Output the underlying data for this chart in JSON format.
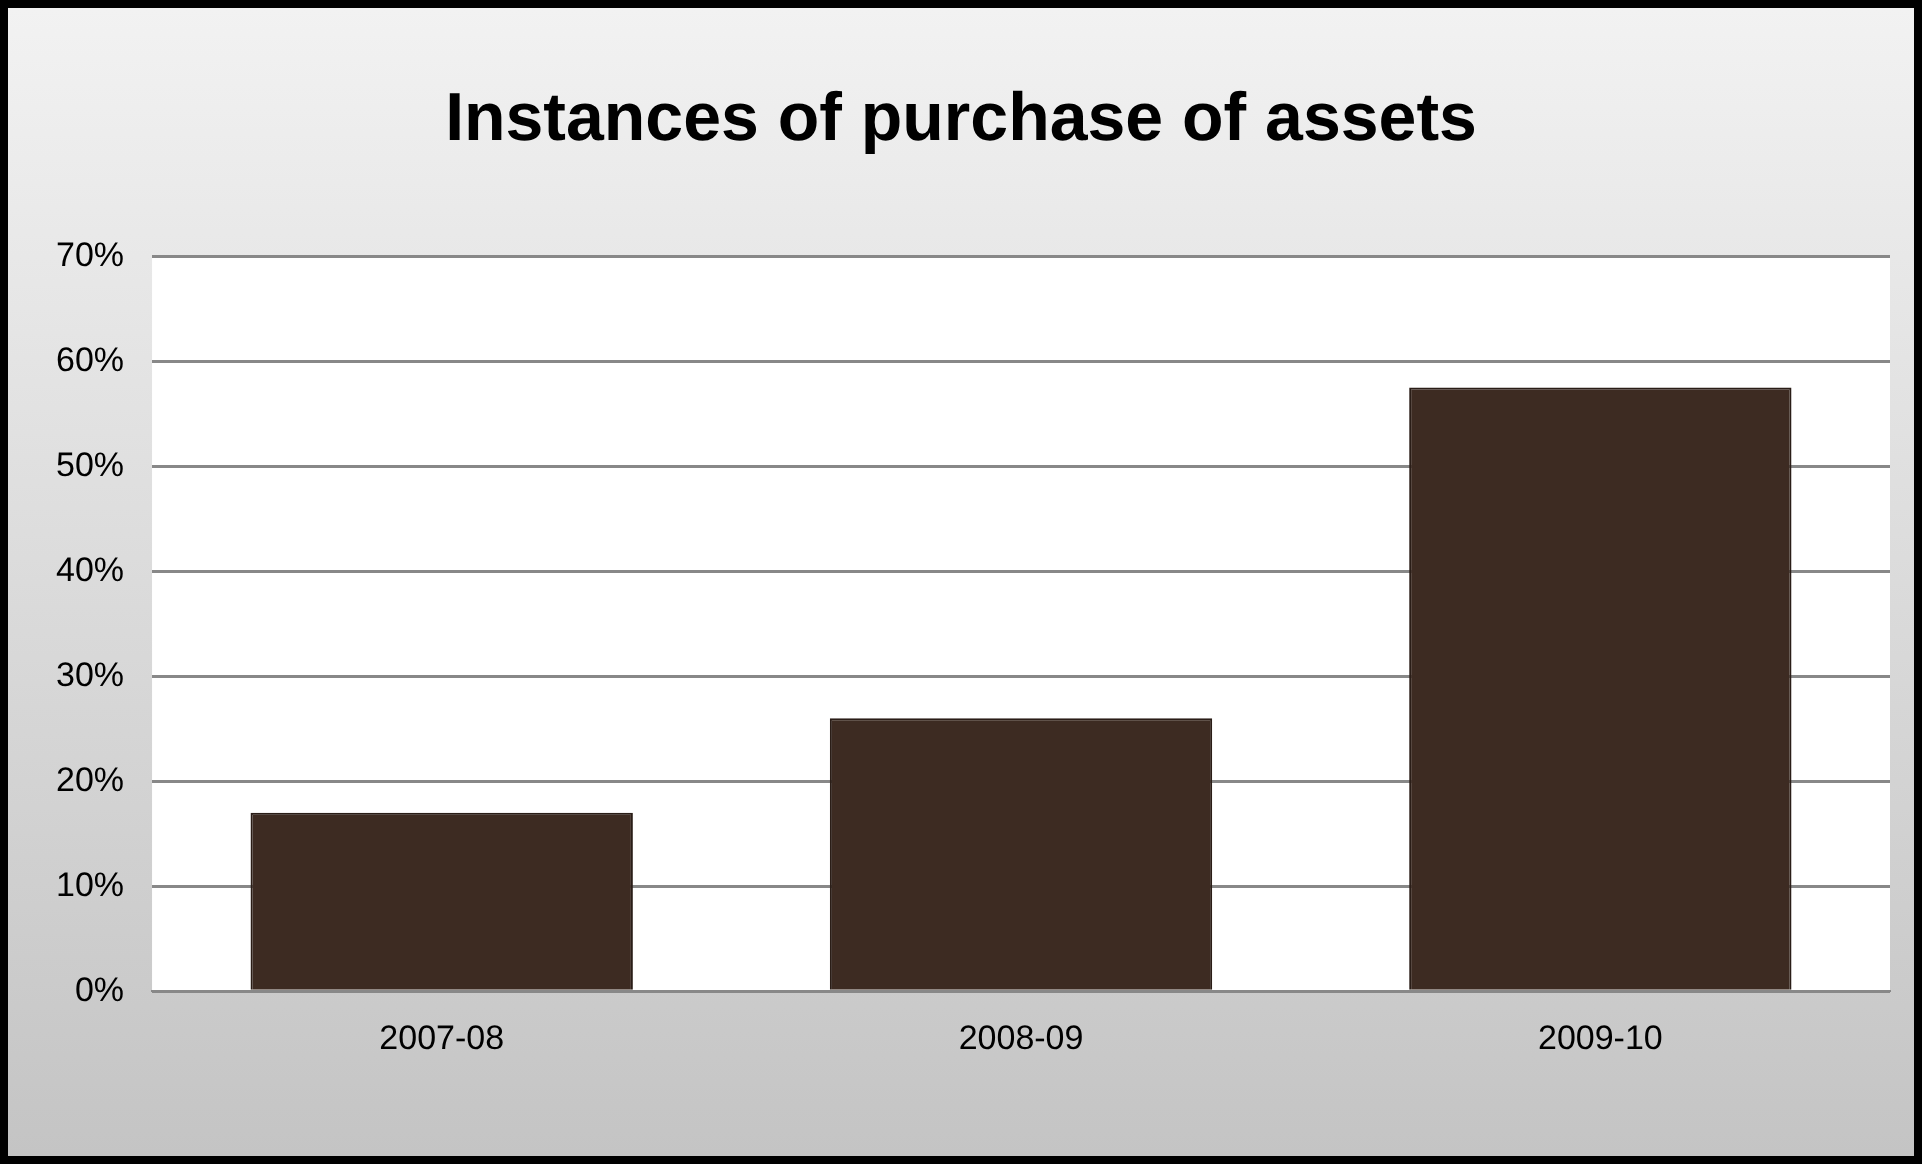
{
  "chart_data": {
    "type": "bar",
    "title": "Instances of purchase of assets",
    "categories": [
      "2007-08",
      "2008-09",
      "2009-10"
    ],
    "values": [
      17,
      26,
      57.5
    ],
    "color": "#3d2b22",
    "ylim": [
      0,
      70
    ],
    "yticks": [
      {
        "value": 0,
        "label": "0%"
      },
      {
        "value": 10,
        "label": "10%"
      },
      {
        "value": 20,
        "label": "20%"
      },
      {
        "value": 30,
        "label": "30%"
      },
      {
        "value": 40,
        "label": "40%"
      },
      {
        "value": 50,
        "label": "50%"
      },
      {
        "value": 60,
        "label": "60%"
      },
      {
        "value": 70,
        "label": "70%"
      }
    ],
    "grid": "y",
    "legend": false
  }
}
